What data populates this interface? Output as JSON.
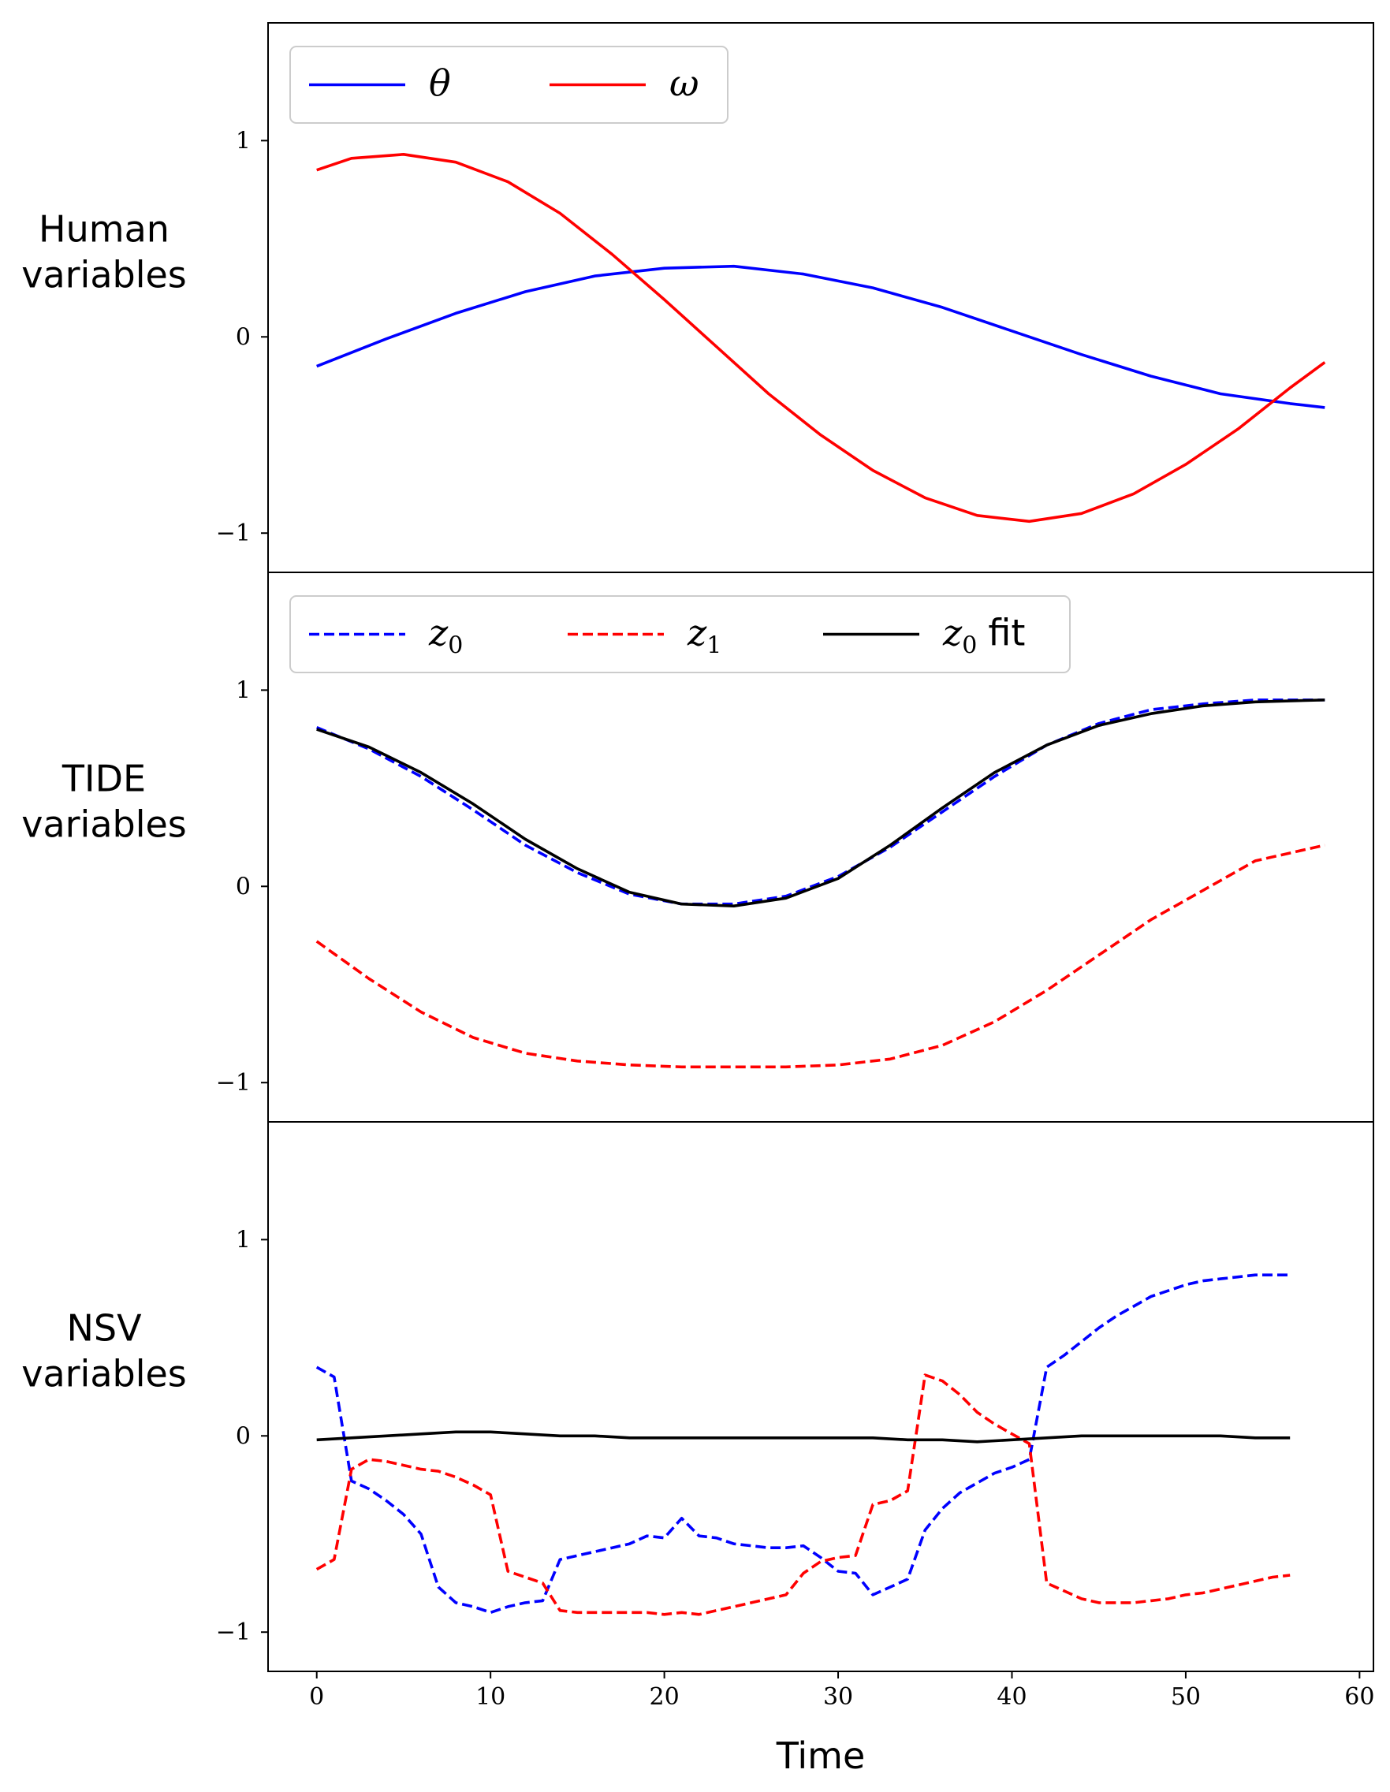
{
  "chart_data": [
    {
      "type": "line",
      "row_label_lines": [
        "Human",
        "variables"
      ],
      "xlim": [
        -2.8,
        60.8
      ],
      "ylim": [
        -1.2,
        1.6
      ],
      "yticks": [
        1,
        0,
        -1
      ],
      "ytick_labels": [
        "1",
        "0",
        "−1"
      ],
      "legend": {
        "position": "top-left"
      },
      "series": [
        {
          "name": "θ",
          "legend_main": "θ",
          "legend_sub": "",
          "legend_suffix": "",
          "color": "#0000ff",
          "dash": "solid",
          "x": [
            0,
            4,
            8,
            12,
            16,
            20,
            24,
            28,
            32,
            36,
            40,
            44,
            48,
            52,
            56,
            58
          ],
          "y": [
            -0.15,
            -0.01,
            0.12,
            0.23,
            0.31,
            0.35,
            0.36,
            0.32,
            0.25,
            0.15,
            0.03,
            -0.09,
            -0.2,
            -0.29,
            -0.34,
            -0.36
          ]
        },
        {
          "name": "ω",
          "legend_main": "ω",
          "legend_sub": "",
          "legend_suffix": "",
          "color": "#ff0000",
          "dash": "solid",
          "x": [
            0,
            2,
            5,
            8,
            11,
            14,
            17,
            20,
            23,
            26,
            29,
            32,
            35,
            38,
            41,
            44,
            47,
            50,
            53,
            56,
            58
          ],
          "y": [
            0.85,
            0.91,
            0.93,
            0.89,
            0.79,
            0.63,
            0.42,
            0.19,
            -0.05,
            -0.29,
            -0.5,
            -0.68,
            -0.82,
            -0.91,
            -0.94,
            -0.9,
            -0.8,
            -0.65,
            -0.47,
            -0.26,
            -0.13
          ]
        }
      ]
    },
    {
      "type": "line",
      "row_label_lines": [
        "TIDE",
        "variables"
      ],
      "xlim": [
        -2.8,
        60.8
      ],
      "ylim": [
        -1.2,
        1.6
      ],
      "yticks": [
        1,
        0,
        -1
      ],
      "ytick_labels": [
        "1",
        "0",
        "−1"
      ],
      "legend": {
        "position": "top-left"
      },
      "series": [
        {
          "name": "z0",
          "legend_main": "z",
          "legend_sub": "0",
          "legend_suffix": "",
          "color": "#0000ff",
          "dash": "dashed",
          "x": [
            0,
            3,
            6,
            9,
            12,
            15,
            18,
            21,
            24,
            27,
            30,
            33,
            36,
            39,
            42,
            45,
            48,
            51,
            54,
            58
          ],
          "y": [
            0.81,
            0.7,
            0.56,
            0.39,
            0.21,
            0.07,
            -0.04,
            -0.09,
            -0.09,
            -0.05,
            0.05,
            0.2,
            0.38,
            0.56,
            0.72,
            0.83,
            0.9,
            0.93,
            0.95,
            0.95
          ]
        },
        {
          "name": "z1",
          "legend_main": "z",
          "legend_sub": "1",
          "legend_suffix": "",
          "color": "#ff0000",
          "dash": "dashed",
          "x": [
            0,
            3,
            6,
            9,
            12,
            15,
            18,
            21,
            24,
            27,
            30,
            33,
            36,
            39,
            42,
            45,
            48,
            51,
            54,
            58
          ],
          "y": [
            -0.28,
            -0.47,
            -0.64,
            -0.77,
            -0.85,
            -0.89,
            -0.91,
            -0.92,
            -0.92,
            -0.92,
            -0.91,
            -0.88,
            -0.81,
            -0.69,
            -0.53,
            -0.35,
            -0.17,
            -0.02,
            0.13,
            0.21
          ]
        },
        {
          "name": "z0 fit",
          "legend_main": "z",
          "legend_sub": "0",
          "legend_suffix": "fit",
          "color": "#000000",
          "dash": "solid",
          "x": [
            0,
            3,
            6,
            9,
            12,
            15,
            18,
            21,
            24,
            27,
            30,
            33,
            36,
            39,
            42,
            45,
            48,
            51,
            54,
            58
          ],
          "y": [
            0.8,
            0.71,
            0.58,
            0.42,
            0.24,
            0.09,
            -0.03,
            -0.09,
            -0.1,
            -0.06,
            0.04,
            0.21,
            0.4,
            0.58,
            0.72,
            0.82,
            0.88,
            0.92,
            0.94,
            0.95
          ]
        }
      ]
    },
    {
      "type": "line",
      "row_label_lines": [
        "NSV",
        "variables"
      ],
      "xlabel": "Time",
      "xlim": [
        -2.8,
        60.8
      ],
      "ylim": [
        -1.2,
        1.6
      ],
      "xticks": [
        0,
        10,
        20,
        30,
        40,
        50,
        60
      ],
      "xtick_labels": [
        "0",
        "10",
        "20",
        "30",
        "40",
        "50",
        "60"
      ],
      "yticks": [
        1,
        0,
        -1
      ],
      "ytick_labels": [
        "1",
        "0",
        "−1"
      ],
      "series": [
        {
          "name": "z0",
          "color": "#0000ff",
          "dash": "dashed",
          "x": [
            0,
            1,
            2,
            3,
            4,
            5,
            6,
            7,
            8,
            9,
            10,
            11,
            12,
            13,
            14,
            15,
            16,
            17,
            18,
            19,
            20,
            21,
            22,
            23,
            24,
            25,
            26,
            27,
            28,
            29,
            30,
            31,
            32,
            33,
            34,
            35,
            36,
            37,
            38,
            39,
            40,
            41,
            42,
            43,
            44,
            45,
            46,
            47,
            48,
            49,
            50,
            51,
            52,
            53,
            54,
            55,
            56
          ],
          "y": [
            0.35,
            0.3,
            -0.23,
            -0.27,
            -0.33,
            -0.4,
            -0.5,
            -0.77,
            -0.85,
            -0.87,
            -0.9,
            -0.87,
            -0.85,
            -0.84,
            -0.63,
            -0.61,
            -0.59,
            -0.57,
            -0.55,
            -0.51,
            -0.52,
            -0.42,
            -0.51,
            -0.52,
            -0.55,
            -0.56,
            -0.57,
            -0.57,
            -0.56,
            -0.62,
            -0.69,
            -0.7,
            -0.81,
            -0.77,
            -0.73,
            -0.48,
            -0.37,
            -0.29,
            -0.24,
            -0.19,
            -0.16,
            -0.12,
            0.35,
            0.41,
            0.48,
            0.55,
            0.61,
            0.66,
            0.71,
            0.74,
            0.77,
            0.79,
            0.8,
            0.81,
            0.82,
            0.82,
            0.82
          ]
        },
        {
          "name": "z1",
          "color": "#ff0000",
          "dash": "dashed",
          "x": [
            0,
            1,
            2,
            3,
            4,
            5,
            6,
            7,
            8,
            9,
            10,
            11,
            12,
            13,
            14,
            15,
            16,
            17,
            18,
            19,
            20,
            21,
            22,
            23,
            24,
            25,
            26,
            27,
            28,
            29,
            30,
            31,
            32,
            33,
            34,
            35,
            36,
            37,
            38,
            39,
            40,
            41,
            42,
            43,
            44,
            45,
            46,
            47,
            48,
            49,
            50,
            51,
            52,
            53,
            54,
            55,
            56
          ],
          "y": [
            -0.68,
            -0.63,
            -0.17,
            -0.12,
            -0.13,
            -0.15,
            -0.17,
            -0.18,
            -0.21,
            -0.25,
            -0.3,
            -0.69,
            -0.72,
            -0.75,
            -0.89,
            -0.9,
            -0.9,
            -0.9,
            -0.9,
            -0.9,
            -0.91,
            -0.9,
            -0.91,
            -0.89,
            -0.87,
            -0.85,
            -0.83,
            -0.81,
            -0.7,
            -0.64,
            -0.62,
            -0.61,
            -0.35,
            -0.33,
            -0.28,
            0.31,
            0.28,
            0.21,
            0.12,
            0.06,
            0.01,
            -0.04,
            -0.75,
            -0.79,
            -0.83,
            -0.85,
            -0.85,
            -0.85,
            -0.84,
            -0.83,
            -0.81,
            -0.8,
            -0.78,
            -0.76,
            -0.74,
            -0.72,
            -0.71
          ]
        },
        {
          "name": "z0 fit",
          "color": "#000000",
          "dash": "solid",
          "x": [
            0,
            2,
            4,
            6,
            8,
            10,
            12,
            14,
            16,
            18,
            20,
            22,
            24,
            26,
            28,
            30,
            32,
            34,
            36,
            38,
            40,
            42,
            44,
            46,
            48,
            50,
            52,
            54,
            56
          ],
          "y": [
            -0.02,
            -0.01,
            0.0,
            0.01,
            0.02,
            0.02,
            0.01,
            0.0,
            0.0,
            -0.01,
            -0.01,
            -0.01,
            -0.01,
            -0.01,
            -0.01,
            -0.01,
            -0.01,
            -0.02,
            -0.02,
            -0.03,
            -0.02,
            -0.01,
            0.0,
            0.0,
            0.0,
            0.0,
            0.0,
            -0.01,
            -0.01
          ]
        }
      ]
    }
  ]
}
